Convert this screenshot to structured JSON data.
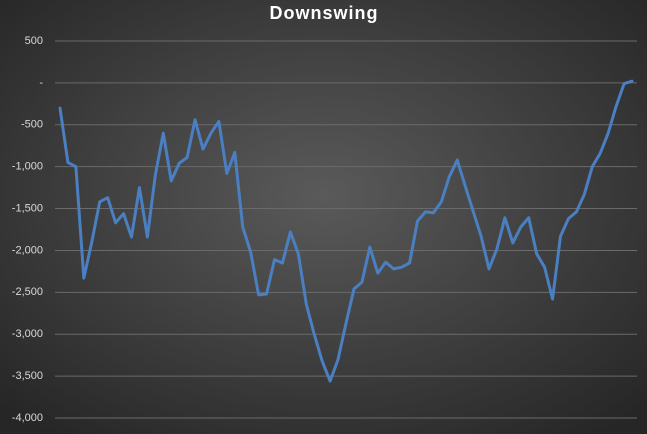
{
  "chart_data": {
    "type": "line",
    "title": "Downswing",
    "series": [
      {
        "name": null,
        "color": "#4a7fc1",
        "values": [
          -300,
          -950,
          -1000,
          -2330,
          -1900,
          -1420,
          -1370,
          -1670,
          -1560,
          -1840,
          -1250,
          -1840,
          -1100,
          -600,
          -1170,
          -960,
          -890,
          -440,
          -790,
          -600,
          -460,
          -1080,
          -830,
          -1720,
          -2020,
          -2530,
          -2520,
          -2110,
          -2150,
          -1780,
          -2040,
          -2640,
          -3000,
          -3320,
          -3560,
          -3300,
          -2870,
          -2460,
          -2380,
          -1960,
          -2270,
          -2140,
          -2220,
          -2200,
          -2150,
          -1650,
          -1540,
          -1550,
          -1420,
          -1120,
          -920,
          -1230,
          -1530,
          -1830,
          -2220,
          -1980,
          -1610,
          -1910,
          -1720,
          -1610,
          -2040,
          -2200,
          -2580,
          -1830,
          -1620,
          -1540,
          -1330,
          -1000,
          -840,
          -600,
          -280,
          -10,
          20
        ]
      }
    ],
    "ylim": [
      -4000,
      500
    ],
    "yticks": [
      500,
      {
        "value": 0,
        "label": "-"
      },
      -500,
      {
        "value": -1000,
        "label": "-1,000"
      },
      {
        "value": -1500,
        "label": "-1,500"
      },
      {
        "value": -2000,
        "label": "-2,000"
      },
      {
        "value": -2500,
        "label": "-2,500"
      },
      {
        "value": -3000,
        "label": "-3,000"
      },
      {
        "value": -3500,
        "label": "-3,500"
      },
      {
        "value": -4000,
        "label": "-4,000"
      }
    ],
    "grid": true
  }
}
